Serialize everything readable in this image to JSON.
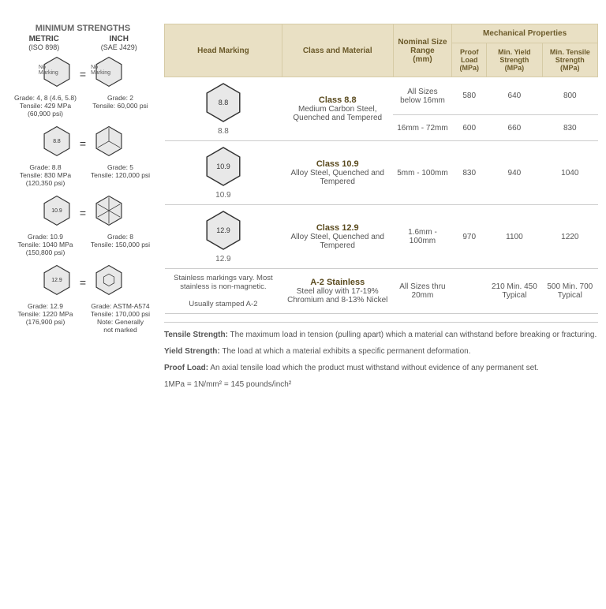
{
  "left": {
    "title": "MINIMUM STRENGTHS",
    "metric": {
      "label": "METRIC",
      "sub": "(ISO 898)"
    },
    "inch": {
      "label": "INCH",
      "sub": "(SAE J429)"
    },
    "rows": [
      {
        "metric_mark": "No Marking",
        "inch_mark": "No Marking",
        "metric_txt": "Grade: 4, 8  (4.6, 5.8)\nTensile: 429 MPa\n(60,900 psi)",
        "inch_txt": "Grade: 2\nTensile: 60,000 psi"
      },
      {
        "metric_mark": "8.8",
        "inch_lines": 3,
        "metric_txt": "Grade: 8.8\nTensile: 830 MPa\n(120,350 psi)",
        "inch_txt": "Grade: 5\nTensile: 120,000 psi"
      },
      {
        "metric_mark": "10.9",
        "inch_lines": 6,
        "metric_txt": "Grade: 10.9\nTensile: 1040 MPa\n(150,800 psi)",
        "inch_txt": "Grade: 8\nTensile: 150,000 psi"
      },
      {
        "metric_mark": "12.9",
        "inch_small_hex": true,
        "metric_txt": "Grade: 12.9\nTensile: 1220 MPa\n(176,900 psi)",
        "inch_txt": "Grade: ASTM-A574\nTensile: 170,000 psi\nNote: Generally\nnot marked"
      }
    ]
  },
  "table": {
    "headers": {
      "head_marking": "Head Marking",
      "class_material": "Class and Material",
      "nominal": "Nominal Size Range",
      "nominal_unit": "(mm)",
      "mech": "Mechanical Properties",
      "proof": "Proof Load",
      "yield": "Min. Yield Strength",
      "tensile": "Min. Tensile Strength",
      "mpa": "(MPa)"
    },
    "rows": [
      {
        "marking": "8.8",
        "class": "Class 8.8",
        "material": "Medium Carbon Steel, Quenched and Tempered",
        "sizes": [
          "All Sizes below 16mm",
          "16mm - 72mm"
        ],
        "proof": [
          "580",
          "600"
        ],
        "yield": [
          "640",
          "660"
        ],
        "tensile": [
          "800",
          "830"
        ]
      },
      {
        "marking": "10.9",
        "class": "Class 10.9",
        "material": "Alloy Steel, Quenched and Tempered",
        "sizes": [
          "5mm - 100mm"
        ],
        "proof": [
          "830"
        ],
        "yield": [
          "940"
        ],
        "tensile": [
          "1040"
        ]
      },
      {
        "marking": "12.9",
        "class": "Class 12.9",
        "material": "Alloy Steel, Quenched and Tempered",
        "sizes": [
          "1.6mm - 100mm"
        ],
        "proof": [
          "970"
        ],
        "yield": [
          "1100"
        ],
        "tensile": [
          "1220"
        ]
      },
      {
        "marking_text": "Stainless markings vary. Most stainless is non-magnetic.\n\nUsually stamped A-2",
        "class": "A-2 Stainless",
        "material": "Steel alloy with 17-19% Chromium and 8-13% Nickel",
        "sizes": [
          "All Sizes thru 20mm"
        ],
        "proof": [
          ""
        ],
        "yield": [
          "210 Min. 450 Typical"
        ],
        "tensile": [
          "500 Min. 700 Typical"
        ]
      }
    ]
  },
  "defs": {
    "tensile_label": "Tensile Strength:",
    "tensile": "The maximum load in tension (pulling apart) which a material can withstand before breaking or fracturing.",
    "yield_label": "Yield Strength:",
    "yield": "The load at which a material exhibits a specific permanent deformation.",
    "proof_label": "Proof Load:",
    "proof": "An axial tensile load which the product must withstand without evidence of any permanent set.",
    "units": "1MPa = 1N/mm² = 145 pounds/inch²"
  },
  "style": {
    "header_bg": "#e9e0c4",
    "header_fg": "#6b5a2a",
    "hex_fill": "#e8e8e8",
    "hex_stroke": "#333333"
  }
}
